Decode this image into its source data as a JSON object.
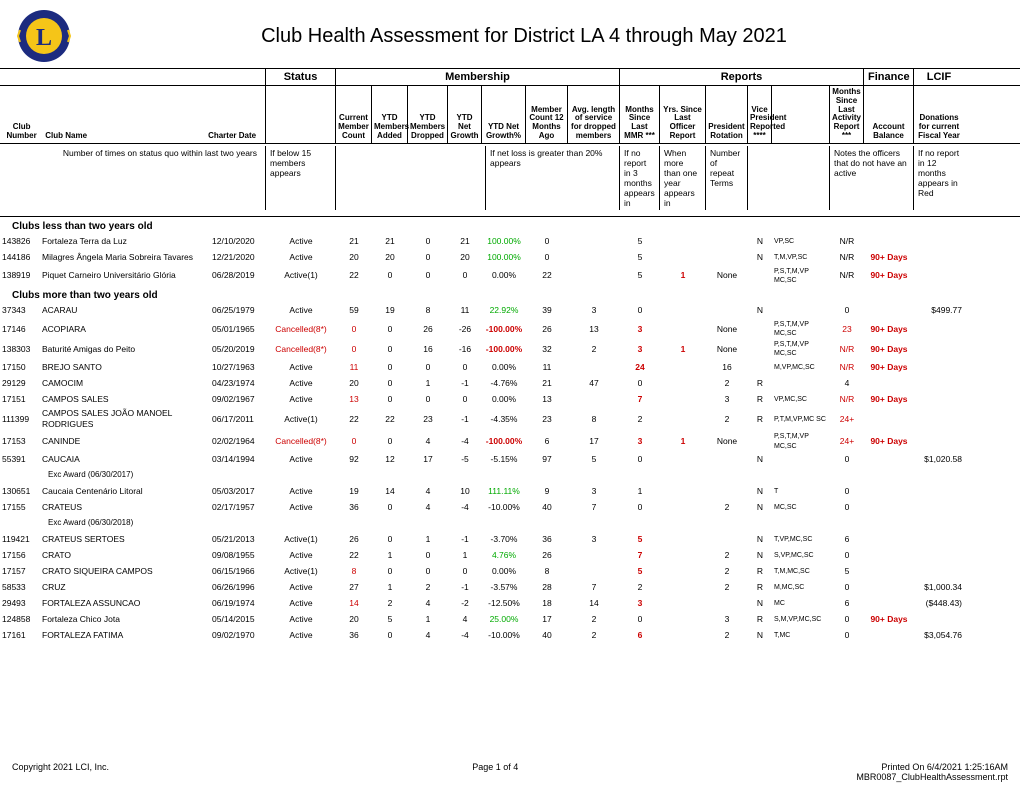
{
  "title": "Club Health Assessment for District LA 4 through May 2021",
  "logo": {
    "outer_color": "#1c2b7f",
    "inner_color": "#f5c518",
    "letter_color": "#1c2b7f",
    "letter": "L"
  },
  "sections": {
    "status": "Status",
    "membership": "Membership",
    "reports": "Reports",
    "finance": "Finance",
    "lcif": "LCIF"
  },
  "section_widths": {
    "blank": 266,
    "status": 70,
    "membership": 284,
    "reports": 244,
    "finance": 50,
    "lcif": 50
  },
  "col_headers": {
    "club_number": "Club Number",
    "club_name": "Club Name",
    "charter_date": "Charter Date",
    "current_count": "Current Member Count",
    "ytd_added": "YTD Members Added",
    "ytd_dropped": "YTD Members Dropped",
    "ytd_net_growth": "YTD Net Growth",
    "ytd_net_growth_pct": "YTD Net Growth%",
    "count12": "Member Count 12 Months Ago",
    "avg_len": "Avg. length of service for dropped members",
    "months_mmr": "Months Since Last MMR ***",
    "yrs_officer": "Yrs. Since Last Officer Report",
    "pres_rot": "President Rotation",
    "vp_rep": "Vice President Reported ****",
    "months_act": "Months Since Last Activity Report ***",
    "acct_bal": "Account Balance",
    "donations": "Donations for current Fiscal Year"
  },
  "notes": {
    "col1": "Number of times on status quo within last two years",
    "col2": "If below 15 members appears",
    "col3": "If net loss is greater than 20% appears",
    "col4": "If no report in 3 months appears in",
    "col5": "When more than one year appears in",
    "col6": "Number of repeat Terms",
    "col7": "Notes the officers that do not have an active",
    "col8": "If no report in 12 months appears in Red"
  },
  "groups": [
    {
      "title": "Clubs less than two years old",
      "rows": [
        {
          "num": "143826",
          "name": "Fortaleza Terra da Luz",
          "charter": "12/10/2020",
          "status": "Active",
          "cc": "21",
          "ya": "21",
          "yd": "0",
          "ng": "21",
          "ngp": "100.00%",
          "c12": "0",
          "avg": "",
          "mmr": "5",
          "yrs": "",
          "pr": "",
          "vp": "N",
          "codes": "VP,SC",
          "act": "N/R",
          "acct": "",
          "don": ""
        },
        {
          "num": "144186",
          "name": "Milagres Ângela Maria Sobreira Tavares",
          "charter": "12/21/2020",
          "status": "Active",
          "cc": "20",
          "ya": "20",
          "yd": "0",
          "ng": "20",
          "ngp": "100.00%",
          "c12": "0",
          "avg": "",
          "mmr": "5",
          "yrs": "",
          "pr": "",
          "vp": "N",
          "codes": "T,M,VP,SC",
          "act": "N/R",
          "acct": "90+ Days",
          "don": ""
        },
        {
          "num": "138919",
          "name": "Piquet Carneiro Universitário Glória",
          "charter": "06/28/2019",
          "status": "Active(1)",
          "cc": "22",
          "ya": "0",
          "yd": "0",
          "ng": "0",
          "ngp": "0.00%",
          "c12": "22",
          "avg": "",
          "mmr": "5",
          "yrs": "1",
          "pr": "None",
          "vp": "",
          "codes": "P,S,T,M,VP MC,SC",
          "act": "N/R",
          "acct": "90+ Days",
          "don": ""
        }
      ]
    },
    {
      "title": "Clubs more than two years old",
      "rows": [
        {
          "num": "37343",
          "name": "ACARAU",
          "charter": "06/25/1979",
          "status": "Active",
          "cc": "59",
          "ya": "19",
          "yd": "8",
          "ng": "11",
          "ngp": "22.92%",
          "c12": "39",
          "avg": "3",
          "mmr": "0",
          "yrs": "",
          "pr": "",
          "vp": "N",
          "codes": "",
          "act": "0",
          "acct": "",
          "don": "$499.77"
        },
        {
          "num": "17146",
          "name": "ACOPIARA",
          "charter": "05/01/1965",
          "status": "Cancelled(8*)",
          "status_red": true,
          "cc": "0",
          "cc_red": true,
          "ya": "0",
          "yd": "26",
          "ng": "-26",
          "ngp": "-100.00%",
          "ngp_red": true,
          "c12": "26",
          "avg": "13",
          "mmr": "3",
          "mmr_red": true,
          "yrs": "",
          "pr": "None",
          "vp": "",
          "codes": "P,S,T,M,VP MC,SC",
          "act": "23",
          "act_red": true,
          "acct": "90+ Days",
          "don": ""
        },
        {
          "num": "138303",
          "name": "Baturité Amigas do Peito",
          "charter": "05/20/2019",
          "status": "Cancelled(8*)",
          "status_red": true,
          "cc": "0",
          "cc_red": true,
          "ya": "0",
          "yd": "16",
          "ng": "-16",
          "ngp": "-100.00%",
          "ngp_red": true,
          "c12": "32",
          "avg": "2",
          "mmr": "3",
          "mmr_red": true,
          "yrs": "1",
          "pr": "None",
          "vp": "",
          "codes": "P,S,T,M,VP MC,SC",
          "act": "N/R",
          "act_red": true,
          "acct": "90+ Days",
          "don": ""
        },
        {
          "num": "17150",
          "name": "BREJO SANTO",
          "charter": "10/27/1963",
          "status": "Active",
          "cc": "11",
          "cc_red": true,
          "ya": "0",
          "yd": "0",
          "ng": "0",
          "ngp": "0.00%",
          "c12": "11",
          "avg": "",
          "mmr": "24",
          "mmr_red": true,
          "yrs": "",
          "pr": "16",
          "vp": "",
          "codes": "M,VP,MC,SC",
          "act": "N/R",
          "act_red": true,
          "acct": "90+ Days",
          "don": ""
        },
        {
          "num": "29129",
          "name": "CAMOCIM",
          "charter": "04/23/1974",
          "status": "Active",
          "cc": "20",
          "ya": "0",
          "yd": "1",
          "ng": "-1",
          "ngp": "-4.76%",
          "c12": "21",
          "avg": "47",
          "mmr": "0",
          "yrs": "",
          "pr": "2",
          "vp": "R",
          "codes": "",
          "act": "4",
          "acct": "",
          "don": ""
        },
        {
          "num": "17151",
          "name": "CAMPOS SALES",
          "charter": "09/02/1967",
          "status": "Active",
          "cc": "13",
          "cc_red": true,
          "ya": "0",
          "yd": "0",
          "ng": "0",
          "ngp": "0.00%",
          "c12": "13",
          "avg": "",
          "mmr": "7",
          "mmr_red": true,
          "yrs": "",
          "pr": "3",
          "vp": "R",
          "codes": "VP,MC,SC",
          "act": "N/R",
          "act_red": true,
          "acct": "90+ Days",
          "don": ""
        },
        {
          "num": "111399",
          "name": "CAMPOS SALES JOÃO MANOEL RODRIGUES",
          "charter": "06/17/2011",
          "status": "Active(1)",
          "cc": "22",
          "ya": "22",
          "yd": "23",
          "ng": "-1",
          "ngp": "-4.35%",
          "c12": "23",
          "avg": "8",
          "mmr": "2",
          "yrs": "",
          "pr": "2",
          "vp": "R",
          "codes": "P,T,M,VP,MC SC",
          "act": "24+",
          "act_red": true,
          "acct": "",
          "don": ""
        },
        {
          "num": "17153",
          "name": "CANINDE",
          "charter": "02/02/1964",
          "status": "Cancelled(8*)",
          "status_red": true,
          "cc": "0",
          "cc_red": true,
          "ya": "0",
          "yd": "4",
          "ng": "-4",
          "ngp": "-100.00%",
          "ngp_red": true,
          "c12": "6",
          "avg": "17",
          "mmr": "3",
          "mmr_red": true,
          "yrs": "1",
          "pr": "None",
          "vp": "",
          "codes": "P,S,T,M,VP MC,SC",
          "act": "24+",
          "act_red": true,
          "acct": "90+ Days",
          "don": ""
        },
        {
          "num": "55391",
          "name": "CAUCAIA",
          "charter": "03/14/1994",
          "status": "Active",
          "cc": "92",
          "ya": "12",
          "yd": "17",
          "ng": "-5",
          "ngp": "-5.15%",
          "c12": "97",
          "avg": "5",
          "mmr": "0",
          "yrs": "",
          "pr": "",
          "vp": "N",
          "codes": "",
          "act": "0",
          "acct": "",
          "don": "$1,020.58",
          "sub": "Exc Award (06/30/2017)"
        },
        {
          "num": "130651",
          "name": "Caucaia Centenário Litoral",
          "charter": "05/03/2017",
          "status": "Active",
          "cc": "19",
          "ya": "14",
          "yd": "4",
          "ng": "10",
          "ngp": "111.11%",
          "c12": "9",
          "avg": "3",
          "mmr": "1",
          "yrs": "",
          "pr": "",
          "vp": "N",
          "codes": "T",
          "act": "0",
          "acct": "",
          "don": ""
        },
        {
          "num": "17155",
          "name": "CRATEUS",
          "charter": "02/17/1957",
          "status": "Active",
          "cc": "36",
          "ya": "0",
          "yd": "4",
          "ng": "-4",
          "ngp": "-10.00%",
          "c12": "40",
          "avg": "7",
          "mmr": "0",
          "yrs": "",
          "pr": "2",
          "vp": "N",
          "codes": "MC,SC",
          "act": "0",
          "acct": "",
          "don": "",
          "sub": "Exc Award (06/30/2018)"
        },
        {
          "num": "119421",
          "name": "CRATEUS SERTOES",
          "charter": "05/21/2013",
          "status": "Active(1)",
          "cc": "26",
          "ya": "0",
          "yd": "1",
          "ng": "-1",
          "ngp": "-3.70%",
          "c12": "36",
          "avg": "3",
          "mmr": "5",
          "mmr_red": true,
          "yrs": "",
          "pr": "",
          "vp": "N",
          "codes": "T,VP,MC,SC",
          "act": "6",
          "acct": "",
          "don": ""
        },
        {
          "num": "17156",
          "name": "CRATO",
          "charter": "09/08/1955",
          "status": "Active",
          "cc": "22",
          "ya": "1",
          "yd": "0",
          "ng": "1",
          "ngp": "4.76%",
          "c12": "26",
          "avg": "",
          "mmr": "7",
          "mmr_red": true,
          "yrs": "",
          "pr": "2",
          "vp": "N",
          "codes": "S,VP,MC,SC",
          "act": "0",
          "acct": "",
          "don": ""
        },
        {
          "num": "17157",
          "name": "CRATO SIQUEIRA CAMPOS",
          "charter": "06/15/1966",
          "status": "Active(1)",
          "cc": "8",
          "cc_red": true,
          "ya": "0",
          "yd": "0",
          "ng": "0",
          "ngp": "0.00%",
          "c12": "8",
          "avg": "",
          "mmr": "5",
          "mmr_red": true,
          "yrs": "",
          "pr": "2",
          "vp": "R",
          "codes": "T,M,MC,SC",
          "act": "5",
          "acct": "",
          "don": ""
        },
        {
          "num": "58533",
          "name": "CRUZ",
          "charter": "06/26/1996",
          "status": "Active",
          "cc": "27",
          "ya": "1",
          "yd": "2",
          "ng": "-1",
          "ngp": "-3.57%",
          "c12": "28",
          "avg": "7",
          "mmr": "2",
          "yrs": "",
          "pr": "2",
          "vp": "R",
          "codes": "M,MC,SC",
          "act": "0",
          "acct": "",
          "don": "$1,000.34"
        },
        {
          "num": "29493",
          "name": "FORTALEZA ASSUNCAO",
          "charter": "06/19/1974",
          "status": "Active",
          "cc": "14",
          "cc_red": true,
          "ya": "2",
          "yd": "4",
          "ng": "-2",
          "ngp": "-12.50%",
          "c12": "18",
          "avg": "14",
          "mmr": "3",
          "mmr_red": true,
          "yrs": "",
          "pr": "",
          "vp": "N",
          "codes": "MC",
          "act": "6",
          "acct": "",
          "don": "($448.43)"
        },
        {
          "num": "124858",
          "name": "Fortaleza Chico Jota",
          "charter": "05/14/2015",
          "status": "Active",
          "cc": "20",
          "ya": "5",
          "yd": "1",
          "ng": "4",
          "ngp": "25.00%",
          "c12": "17",
          "avg": "2",
          "mmr": "0",
          "yrs": "",
          "pr": "3",
          "vp": "R",
          "codes": "S,M,VP,MC,SC",
          "act": "0",
          "acct": "90+ Days",
          "don": ""
        },
        {
          "num": "17161",
          "name": "FORTALEZA FATIMA",
          "charter": "09/02/1970",
          "status": "Active",
          "cc": "36",
          "ya": "0",
          "yd": "4",
          "ng": "-4",
          "ngp": "-10.00%",
          "c12": "40",
          "avg": "2",
          "mmr": "6",
          "mmr_red": true,
          "yrs": "",
          "pr": "2",
          "vp": "N",
          "codes": "T,MC",
          "act": "0",
          "acct": "",
          "don": "$3,054.76"
        }
      ]
    }
  ],
  "footer": {
    "copyright": "Copyright 2021 LCI, Inc.",
    "page": "Page 1 of 4",
    "printed": "Printed On 6/4/2021 1:25:16AM",
    "report": "MBR0087_ClubHealthAssessment.rpt"
  }
}
